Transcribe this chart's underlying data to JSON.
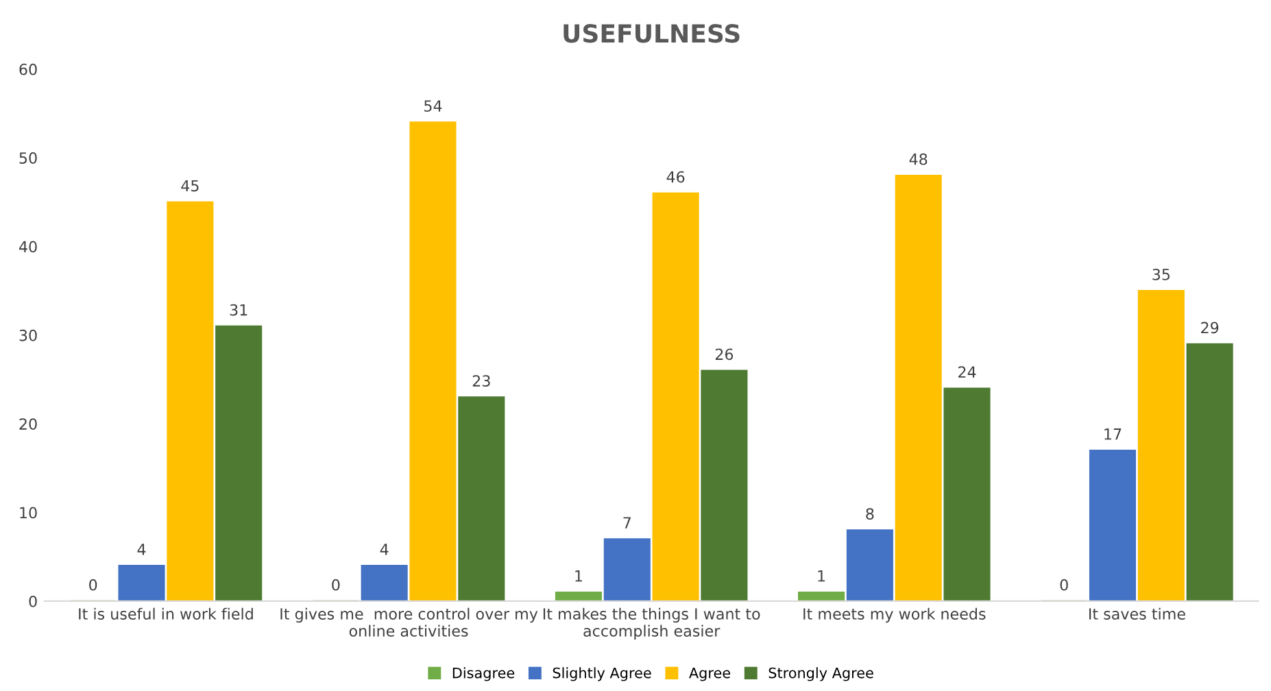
{
  "chart_data": {
    "type": "bar",
    "title": "USEFULNESS",
    "categories": [
      "It is useful in work field",
      "It gives me  more control over my\nonline activities",
      "It makes the things I want to\naccomplish easier",
      "It meets my work needs",
      "It saves time"
    ],
    "series": [
      {
        "name": "Disagree",
        "color": "#70ad47",
        "values": [
          0,
          0,
          1,
          1,
          0
        ]
      },
      {
        "name": "Slightly Agree",
        "color": "#4472c4",
        "values": [
          4,
          4,
          7,
          8,
          17
        ]
      },
      {
        "name": "Agree",
        "color": "#ffc000",
        "values": [
          45,
          54,
          46,
          48,
          35
        ]
      },
      {
        "name": "Strongly Agree",
        "color": "#4e7a32",
        "values": [
          31,
          23,
          26,
          24,
          29
        ]
      }
    ],
    "ylim": [
      0,
      60
    ],
    "yticks": [
      0,
      10,
      20,
      30,
      40,
      50,
      60
    ],
    "data_labels": true,
    "legend": "bottom",
    "grid": false
  }
}
